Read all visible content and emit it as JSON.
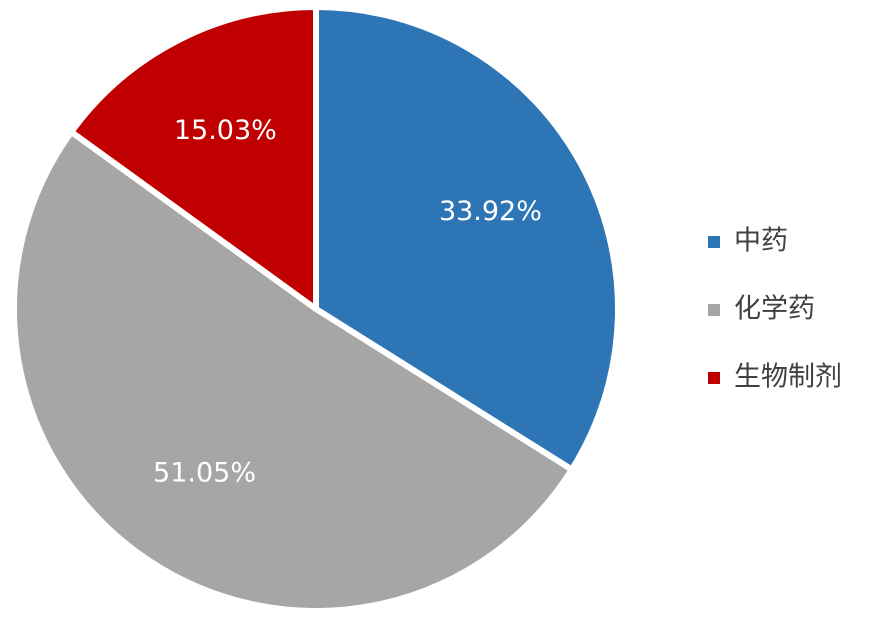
{
  "chart_data": {
    "type": "pie",
    "categories": [
      "中药",
      "化学药",
      "生物制剂"
    ],
    "values": [
      33.92,
      51.05,
      15.03
    ],
    "value_labels": [
      "33.92%",
      "51.05%",
      "15.03%"
    ],
    "colors": [
      "#2e75b6",
      "#a6a6a6",
      "#c00000"
    ],
    "legend": "right"
  }
}
